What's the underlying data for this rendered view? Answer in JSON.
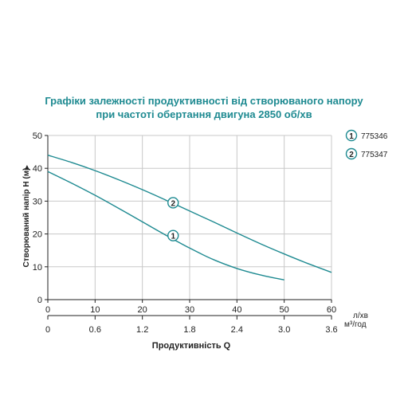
{
  "title": {
    "line1": "Графіки залежності продуктивності від створюваного напору",
    "line2": "при частоті обертання двигуна 2850 об/хв"
  },
  "colors": {
    "title": "#1e8a91",
    "curve": "#1e8a91",
    "grid": "#c8c8c8",
    "axis": "#222222"
  },
  "chart_data": {
    "type": "line",
    "title": "Графіки залежності продуктивності від створюваного напору при частоті обертання двигуна 2850 об/хв",
    "xlabel": "л/хв",
    "x2label": "м³/год",
    "ylabel": "Створюваний напір H (м)",
    "bottom_label_partial": "Продуктивність Q",
    "xlim": [
      0,
      60
    ],
    "ylim": [
      0,
      50
    ],
    "xticks": [
      "0",
      "10",
      "20",
      "30",
      "40",
      "50",
      "60"
    ],
    "x2ticks": [
      "0",
      "0.6",
      "1.2",
      "1.8",
      "2.4",
      "3.0",
      "3.6"
    ],
    "yticks": [
      "0",
      "10",
      "20",
      "30",
      "40",
      "50"
    ],
    "grid": true,
    "legend_position": "right",
    "series": [
      {
        "name": "775346",
        "marker": "1",
        "x": [
          0,
          5,
          10,
          15,
          20,
          25,
          30,
          35,
          40,
          45,
          50
        ],
        "y": [
          39,
          35.5,
          31.8,
          27.8,
          23.7,
          19.6,
          15.7,
          12.2,
          9.5,
          7.5,
          6
        ]
      },
      {
        "name": "775347",
        "marker": "2",
        "x": [
          0,
          5,
          10,
          15,
          20,
          25,
          30,
          35,
          40,
          45,
          50,
          55,
          60
        ],
        "y": [
          44,
          41.8,
          39.3,
          36.5,
          33.5,
          30.3,
          27,
          23.7,
          20.3,
          17,
          13.9,
          11,
          8.3
        ]
      }
    ],
    "curve_labels": [
      {
        "marker": "1",
        "x": 26.5,
        "y": 19.5
      },
      {
        "marker": "2",
        "x": 26.5,
        "y": 29.5
      }
    ]
  }
}
